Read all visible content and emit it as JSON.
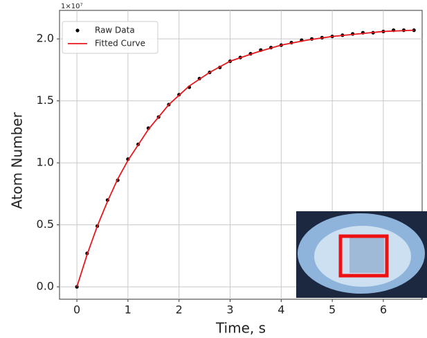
{
  "chart_data": {
    "type": "line",
    "offset_label": "1×10⁷",
    "x_label": "Time, s",
    "y_label": "Atom Number",
    "xlim": [
      -0.34,
      6.76
    ],
    "ylim": [
      -0.1,
      2.23
    ],
    "xticks": [
      0,
      1,
      2,
      3,
      4,
      5,
      6
    ],
    "yticks": [
      {
        "value": 0,
        "label": "0.0"
      },
      0.5,
      {
        "value": 1,
        "label": "1.0"
      },
      1.5,
      {
        "value": 2,
        "label": "2.0"
      }
    ],
    "grid": true,
    "legend": "upper-left",
    "series": [
      {
        "name": "Raw Data",
        "type": "scatter",
        "color": "#000000",
        "x": [
          0,
          0.2,
          0.4,
          0.6,
          0.8,
          1.0,
          1.2,
          1.4,
          1.6,
          1.8,
          2.0,
          2.2,
          2.4,
          2.6,
          2.8,
          3.0,
          3.2,
          3.4,
          3.6,
          3.8,
          4.0,
          4.2,
          4.4,
          4.6,
          4.8,
          5.0,
          5.2,
          5.4,
          5.6,
          5.8,
          6.0,
          6.2,
          6.4,
          6.6
        ],
        "values": [
          0.0,
          0.27,
          0.49,
          0.7,
          0.86,
          1.03,
          1.15,
          1.28,
          1.37,
          1.47,
          1.55,
          1.61,
          1.68,
          1.73,
          1.77,
          1.82,
          1.85,
          1.88,
          1.91,
          1.93,
          1.95,
          1.97,
          1.99,
          2.0,
          2.01,
          2.02,
          2.03,
          2.04,
          2.05,
          2.05,
          2.06,
          2.07,
          2.07,
          2.07
        ]
      },
      {
        "name": "Fitted Curve",
        "type": "line",
        "color": "#e8161b",
        "x": [
          0,
          0.2,
          0.4,
          0.6,
          0.8,
          1.0,
          1.4,
          1.8,
          2.2,
          2.6,
          3.0,
          3.5,
          4.0,
          4.5,
          5.0,
          5.5,
          6.0,
          6.6
        ],
        "values": [
          0.0,
          0.26,
          0.49,
          0.69,
          0.87,
          1.02,
          1.27,
          1.47,
          1.62,
          1.73,
          1.82,
          1.89,
          1.95,
          1.99,
          2.02,
          2.04,
          2.06,
          2.07
        ]
      }
    ]
  }
}
